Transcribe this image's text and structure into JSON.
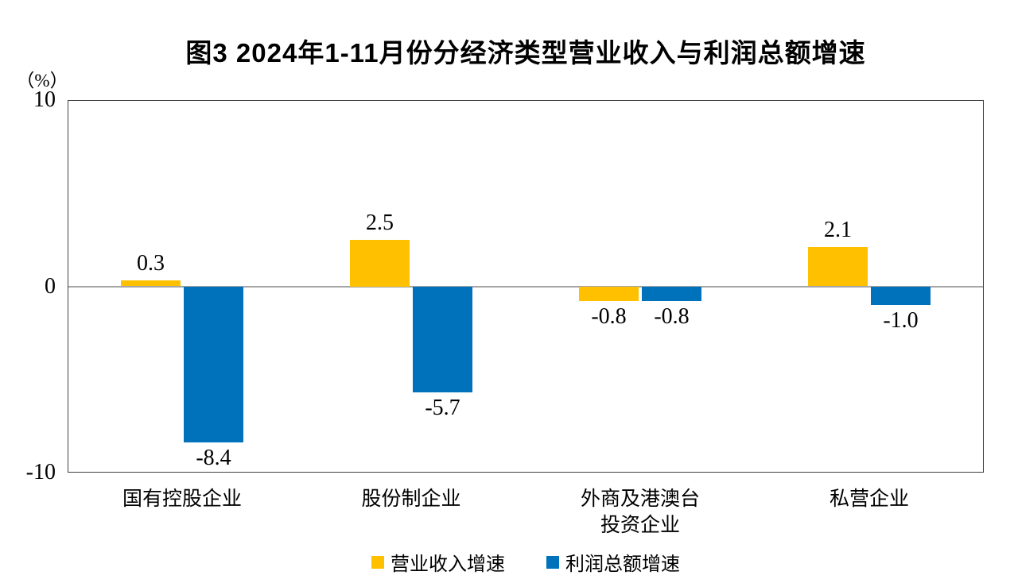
{
  "figure": {
    "title": "图3  2024年1-11月份分经济类型营业收入与利润总额增速",
    "unit_label": "（%）"
  },
  "chart_data": {
    "type": "bar",
    "title": "图3  2024年1-11月份分经济类型营业收入与利润总额增速",
    "unit_label": "（%）",
    "categories": [
      "国有控股企业",
      "股份制企业",
      "外商及港澳台\n投资企业",
      "私营企业"
    ],
    "series": [
      {
        "name": "营业收入增速",
        "color": "#FFC000",
        "values": [
          0.3,
          2.5,
          -0.8,
          2.1
        ]
      },
      {
        "name": "利润总额增速",
        "color": "#0072BC",
        "values": [
          -8.4,
          -5.7,
          -0.8,
          -1.0
        ]
      }
    ],
    "data_labels": {
      "营业收入增速": [
        "0.3",
        "2.5",
        "-0.8",
        "2.1"
      ],
      "利润总额增速": [
        "-8.4",
        "-5.7",
        "-0.8",
        "-1.0"
      ]
    },
    "ylim": [
      -10,
      10
    ],
    "yticks": [
      10,
      0,
      -10
    ],
    "grid": "zero-line-only",
    "zero_line_color": "#A6A6A6",
    "axis_border_color": "#3F3F3F",
    "legend_position": "bottom"
  }
}
